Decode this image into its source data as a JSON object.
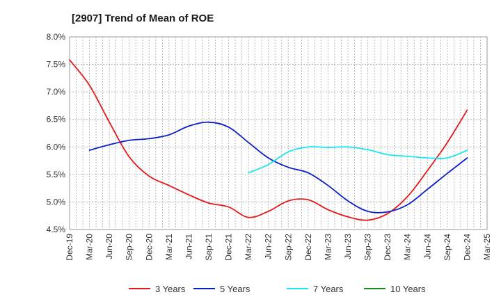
{
  "chart_data": {
    "type": "line",
    "title": "[2907]  Trend of Mean of ROE",
    "xlabel": "",
    "ylabel": "",
    "x_ticks": [
      "Dec-19",
      "Mar-20",
      "Jun-20",
      "Sep-20",
      "Dec-20",
      "Mar-21",
      "Jun-21",
      "Sep-21",
      "Dec-21",
      "Mar-22",
      "Jun-22",
      "Sep-22",
      "Dec-22",
      "Mar-23",
      "Jun-23",
      "Sep-23",
      "Dec-23",
      "Mar-24",
      "Jun-24",
      "Sep-24",
      "Dec-24",
      "Mar-25"
    ],
    "y_ticks": [
      "4.5%",
      "5.0%",
      "5.5%",
      "6.0%",
      "6.5%",
      "7.0%",
      "7.5%",
      "8.0%"
    ],
    "ylim": [
      4.5,
      8.0
    ],
    "grid": true,
    "legend_position": "bottom",
    "series": [
      {
        "name": "3 Years",
        "color": "#e31a1c",
        "start_index": 0,
        "values": [
          7.58,
          7.12,
          6.45,
          5.82,
          5.47,
          5.3,
          5.13,
          4.98,
          4.91,
          4.72,
          4.83,
          5.02,
          5.04,
          4.86,
          4.73,
          4.67,
          4.79,
          5.1,
          5.57,
          6.08,
          6.67
        ]
      },
      {
        "name": "5 Years",
        "color": "#0a1ec8",
        "start_index": 1,
        "values": [
          5.94,
          6.04,
          6.12,
          6.15,
          6.22,
          6.38,
          6.45,
          6.36,
          6.08,
          5.8,
          5.63,
          5.53,
          5.3,
          5.02,
          4.83,
          4.82,
          4.95,
          5.23,
          5.52,
          5.8
        ]
      },
      {
        "name": "7 Years",
        "color": "#1ae6f0",
        "start_index": 9,
        "values": [
          5.53,
          5.68,
          5.91,
          6.0,
          5.99,
          6.0,
          5.95,
          5.86,
          5.83,
          5.8,
          5.8,
          5.94
        ]
      },
      {
        "name": "10 Years",
        "color": "#1a8c1a",
        "start_index": 0,
        "values": []
      }
    ]
  }
}
